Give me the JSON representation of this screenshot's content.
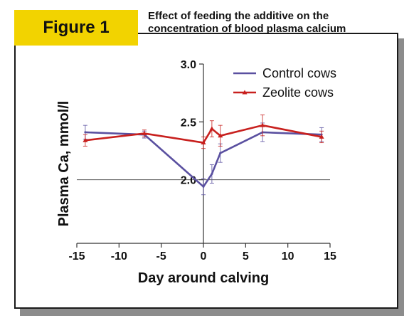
{
  "figure_label": "Figure 1",
  "figure_title": "Effect of feeding the additive on the concentration of blood plasma calcium",
  "colors": {
    "label_bg": "#f2d300",
    "control": "#5a50a0",
    "zeolite": "#c8201e"
  },
  "chart_data": {
    "type": "line",
    "xlabel": "Day around calving",
    "ylabel": "Plasma Ca, mmol/l",
    "xlim": [
      -15,
      15
    ],
    "ylim": [
      1.45,
      3.0
    ],
    "x_ticks": [
      -15,
      -10,
      -5,
      0,
      5,
      10,
      15
    ],
    "x_tick_labels": [
      "-15",
      "-10",
      "-5",
      "0",
      "5",
      "10",
      "15"
    ],
    "y_ticks": [
      2.0,
      2.5,
      3.0
    ],
    "y_tick_labels": [
      "2.0",
      "2.5",
      "3.0"
    ],
    "reference_line": 2.0,
    "legend_position": "top-right",
    "series": [
      {
        "name": "Control cows",
        "x": [
          -14,
          -7,
          0,
          1,
          2,
          7,
          14
        ],
        "values": [
          2.41,
          2.39,
          1.94,
          2.05,
          2.23,
          2.41,
          2.39
        ],
        "error": [
          0.06,
          0.03,
          0.07,
          0.08,
          0.08,
          0.08,
          0.06
        ]
      },
      {
        "name": "Zeolite cows",
        "x": [
          -14,
          -7,
          0,
          1,
          2,
          7,
          14
        ],
        "values": [
          2.34,
          2.4,
          2.32,
          2.44,
          2.38,
          2.47,
          2.37
        ],
        "error": [
          0.05,
          0.03,
          0.05,
          0.07,
          0.09,
          0.09,
          0.05
        ]
      }
    ]
  }
}
